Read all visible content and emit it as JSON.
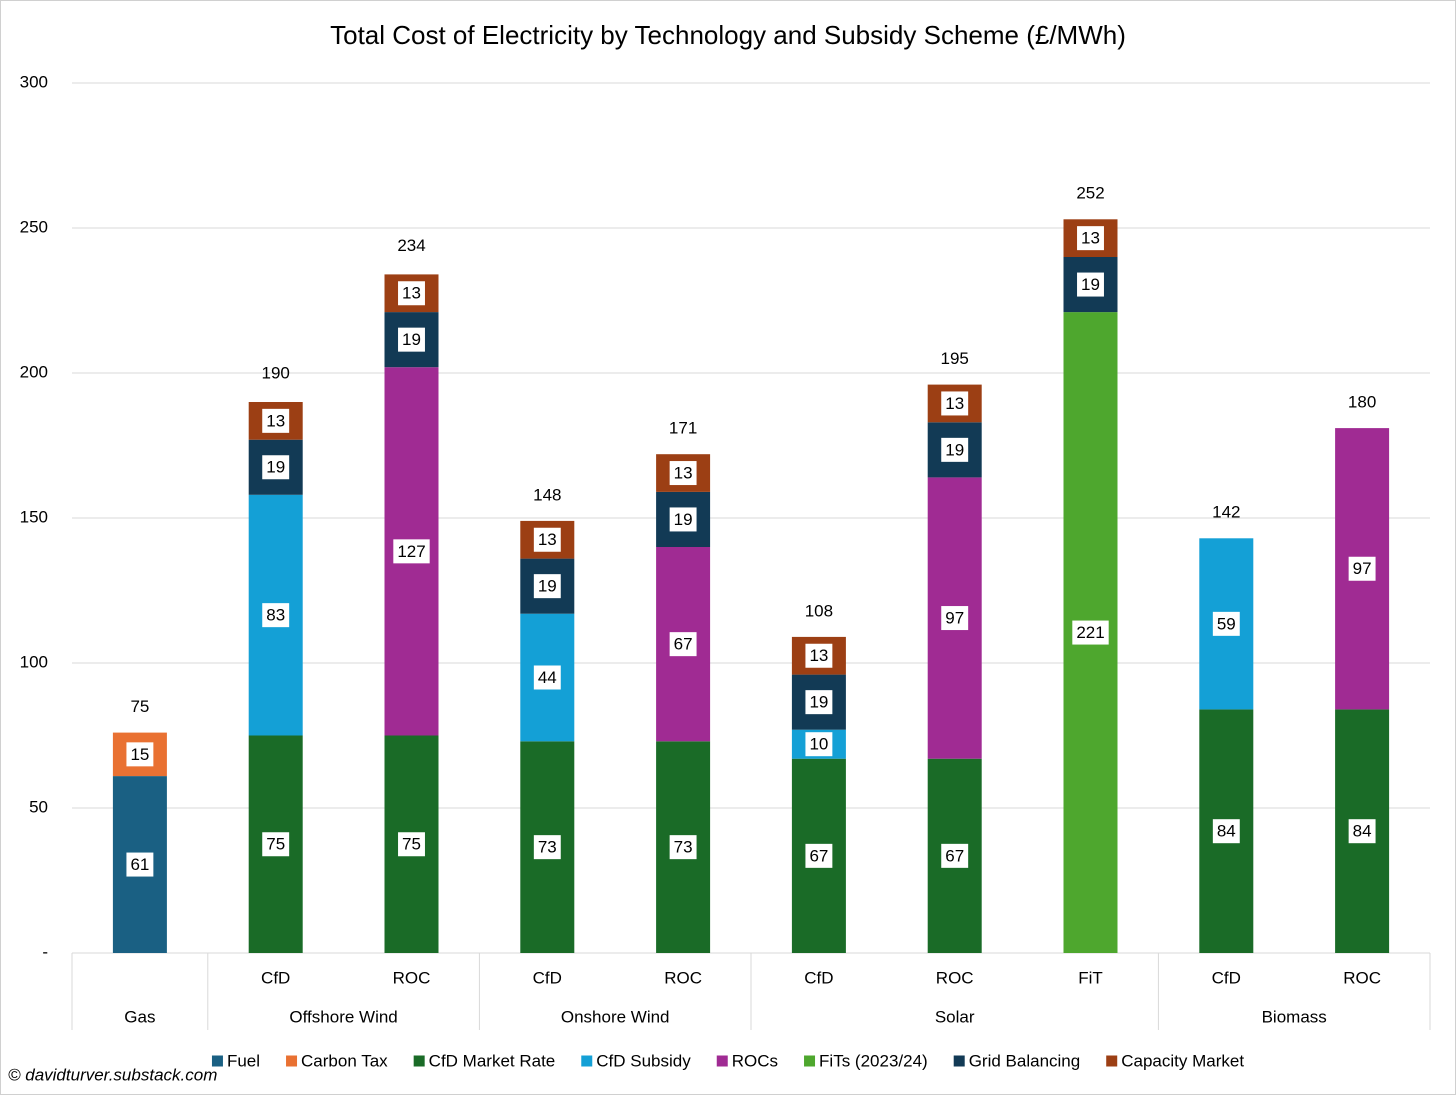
{
  "chart_data": {
    "type": "stacked_bar",
    "title": "Total Cost of Electricity by Technology and Subsidy Scheme (£/MWh)",
    "groups": [
      {
        "name": "Gas",
        "categories": [
          null
        ]
      },
      {
        "name": "Offshore Wind",
        "categories": [
          "CfD",
          "ROC"
        ]
      },
      {
        "name": "Onshore Wind",
        "categories": [
          "CfD",
          "ROC"
        ]
      },
      {
        "name": "Solar",
        "categories": [
          "CfD",
          "ROC",
          "FiT"
        ]
      },
      {
        "name": "Biomass",
        "categories": [
          "CfD",
          "ROC"
        ]
      }
    ],
    "series": [
      {
        "name": "Fuel",
        "color": "#1a6083",
        "values": [
          61,
          null,
          null,
          null,
          null,
          null,
          null,
          null,
          null,
          null
        ]
      },
      {
        "name": "Carbon Tax",
        "color": "#e97132",
        "values": [
          15,
          null,
          null,
          null,
          null,
          null,
          null,
          null,
          null,
          null
        ]
      },
      {
        "name": "CfD Market Rate",
        "color": "#1a6b27",
        "values": [
          null,
          75,
          75,
          73,
          73,
          67,
          67,
          null,
          84,
          84
        ]
      },
      {
        "name": "CfD Subsidy",
        "color": "#14a0d6",
        "values": [
          null,
          83,
          null,
          44,
          null,
          10,
          null,
          null,
          59,
          null
        ]
      },
      {
        "name": "ROCs",
        "color": "#a02b93",
        "values": [
          null,
          null,
          127,
          null,
          67,
          null,
          97,
          null,
          null,
          97
        ]
      },
      {
        "name": "FiTs (2023/24)",
        "color": "#4ea72e",
        "values": [
          null,
          null,
          null,
          null,
          null,
          null,
          null,
          221,
          null,
          null
        ]
      },
      {
        "name": "Grid Balancing",
        "color": "#123a55",
        "values": [
          null,
          19,
          19,
          19,
          19,
          19,
          19,
          19,
          null,
          null
        ]
      },
      {
        "name": "Capacity Market",
        "color": "#9c3f14",
        "values": [
          null,
          13,
          13,
          13,
          13,
          13,
          13,
          13,
          null,
          null
        ]
      }
    ],
    "totals": [
      75,
      190,
      234,
      148,
      171,
      108,
      195,
      252,
      142,
      180
    ],
    "ylim": [
      0,
      300
    ],
    "yticks": [
      {
        "value": 0,
        "label": "-"
      },
      50,
      100,
      150,
      200,
      250,
      300
    ],
    "grid": true,
    "legend": "bottom",
    "credit": "© davidturver.substack.com"
  }
}
